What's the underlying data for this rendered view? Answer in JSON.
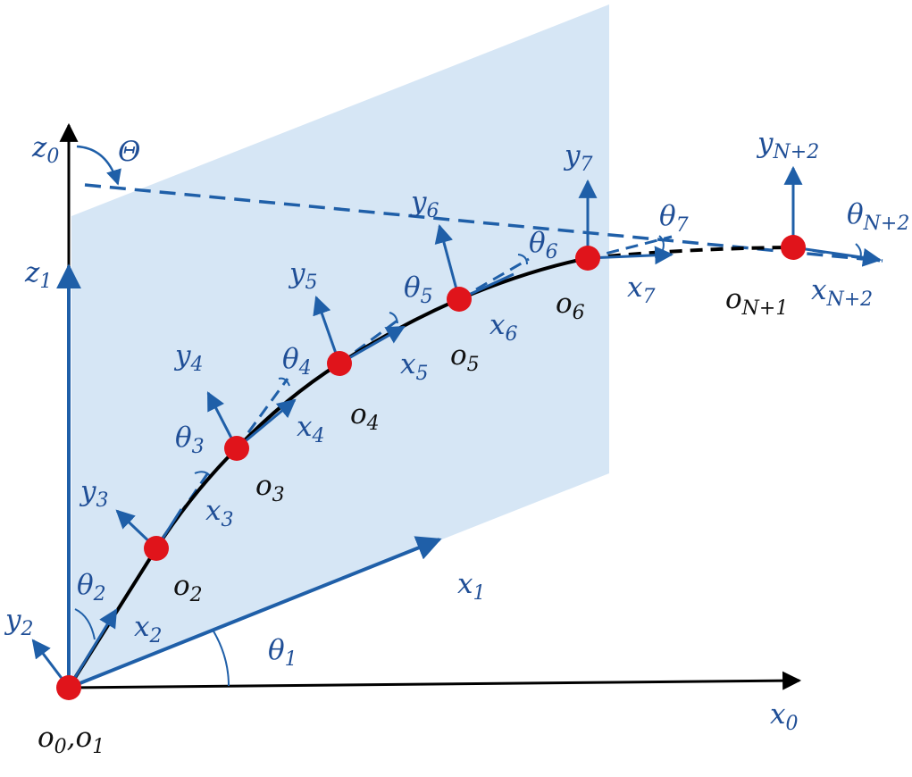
{
  "colors": {
    "axis_blue": "#1f5fa8",
    "label_blue": "#1f4e96",
    "plane_fill": "#d6e6f5",
    "node_red": "#e0141b",
    "curve_black": "#000000",
    "background": "#ffffff"
  },
  "labels": {
    "z0": {
      "main": "z",
      "sub": "0"
    },
    "Theta": {
      "main": "Θ",
      "sub": ""
    },
    "z1": {
      "main": "z",
      "sub": "1"
    },
    "x0": {
      "main": "x",
      "sub": "0"
    },
    "x1": {
      "main": "x",
      "sub": "1"
    },
    "theta1": {
      "main": "θ",
      "sub": "1"
    },
    "y2": {
      "main": "y",
      "sub": "2"
    },
    "x2": {
      "main": "x",
      "sub": "2"
    },
    "theta2": {
      "main": "θ",
      "sub": "2"
    },
    "y3": {
      "main": "y",
      "sub": "3"
    },
    "x3": {
      "main": "x",
      "sub": "3"
    },
    "theta3": {
      "main": "θ",
      "sub": "3"
    },
    "y4": {
      "main": "y",
      "sub": "4"
    },
    "x4": {
      "main": "x",
      "sub": "4"
    },
    "theta4": {
      "main": "θ",
      "sub": "4"
    },
    "y5": {
      "main": "y",
      "sub": "5"
    },
    "x5": {
      "main": "x",
      "sub": "5"
    },
    "theta5": {
      "main": "θ",
      "sub": "5"
    },
    "y6": {
      "main": "y",
      "sub": "6"
    },
    "x6": {
      "main": "x",
      "sub": "6"
    },
    "theta6": {
      "main": "θ",
      "sub": "6"
    },
    "y7": {
      "main": "y",
      "sub": "7"
    },
    "x7": {
      "main": "x",
      "sub": "7"
    },
    "theta7": {
      "main": "θ",
      "sub": "7"
    },
    "yN2": {
      "main": "y",
      "sub": "N+2"
    },
    "xN2": {
      "main": "x",
      "sub": "N+2"
    },
    "thetaN2": {
      "main": "θ",
      "sub": "N+2"
    }
  },
  "nodes": {
    "o01": {
      "main1": "o",
      "sub1": "0",
      "sep": ",",
      "main2": "o",
      "sub2": "1"
    },
    "o2": {
      "main": "o",
      "sub": "2"
    },
    "o3": {
      "main": "o",
      "sub": "3"
    },
    "o4": {
      "main": "o",
      "sub": "4"
    },
    "o5": {
      "main": "o",
      "sub": "5"
    },
    "o6": {
      "main": "o",
      "sub": "6"
    },
    "oN1": {
      "main": "o",
      "sub": "N+1"
    }
  }
}
